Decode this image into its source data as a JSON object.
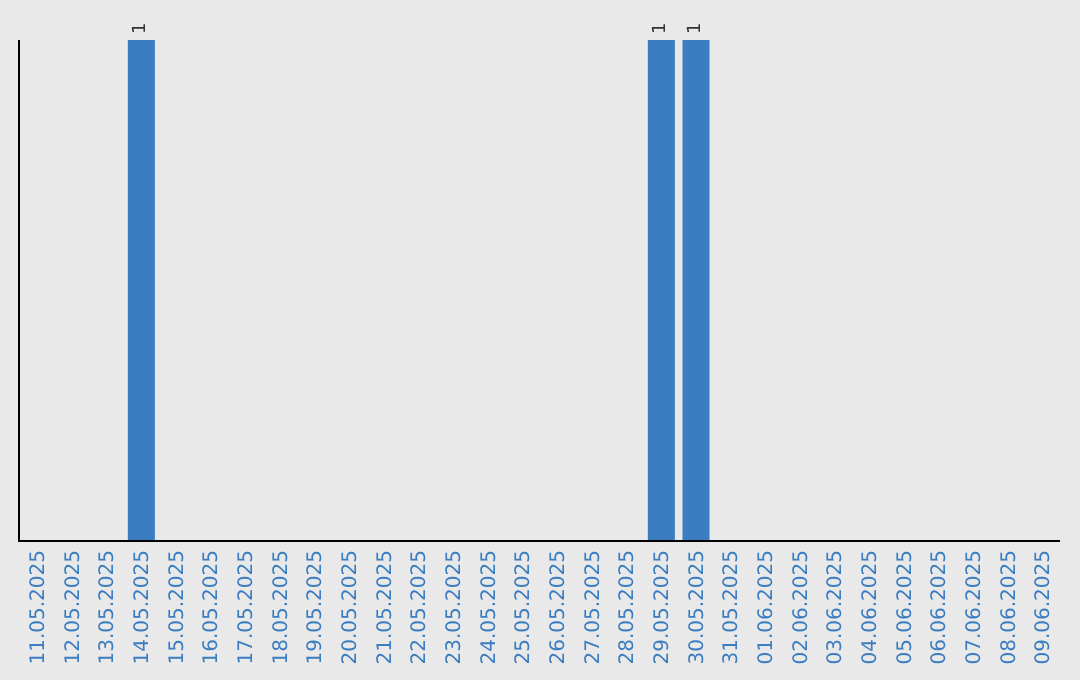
{
  "chart_data": {
    "type": "bar",
    "categories": [
      "11.05.2025",
      "12.05.2025",
      "13.05.2025",
      "14.05.2025",
      "15.05.2025",
      "16.05.2025",
      "17.05.2025",
      "18.05.2025",
      "19.05.2025",
      "20.05.2025",
      "21.05.2025",
      "22.05.2025",
      "23.05.2025",
      "24.05.2025",
      "25.05.2025",
      "26.05.2025",
      "27.05.2025",
      "28.05.2025",
      "29.05.2025",
      "30.05.2025",
      "31.05.2025",
      "01.06.2025",
      "02.06.2025",
      "03.06.2025",
      "04.06.2025",
      "05.06.2025",
      "06.06.2025",
      "07.06.2025",
      "08.06.2025",
      "09.06.2025"
    ],
    "values": [
      0,
      0,
      0,
      1,
      0,
      0,
      0,
      0,
      0,
      0,
      0,
      0,
      0,
      0,
      0,
      0,
      0,
      0,
      1,
      1,
      0,
      0,
      0,
      0,
      0,
      0,
      0,
      0,
      0,
      0
    ],
    "value_labels": [
      null,
      null,
      null,
      "1",
      null,
      null,
      null,
      null,
      null,
      null,
      null,
      null,
      null,
      null,
      null,
      null,
      null,
      null,
      "1",
      "1",
      null,
      null,
      null,
      null,
      null,
      null,
      null,
      null,
      null,
      null
    ],
    "color": "#3a7dc0",
    "grid": false,
    "tick_labels": "x"
  }
}
